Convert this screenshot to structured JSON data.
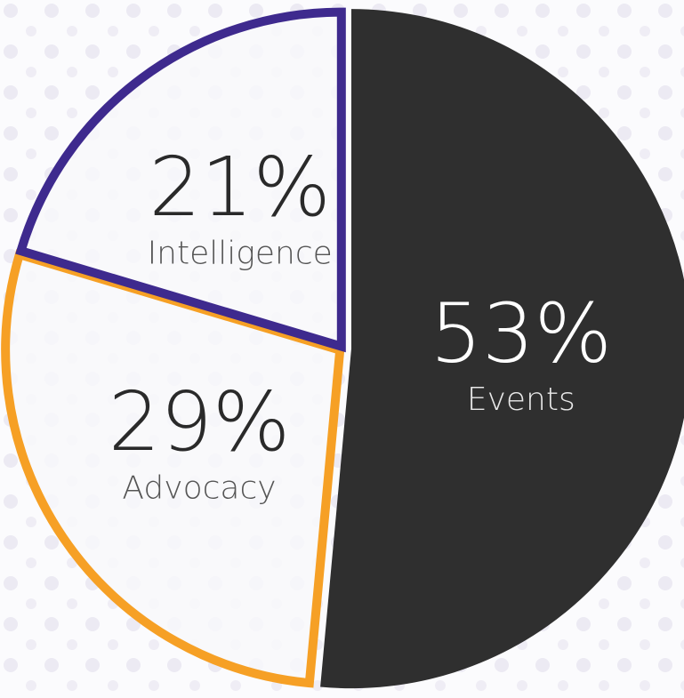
{
  "chart_data": {
    "type": "pie",
    "categories": [
      "Events",
      "Advocacy",
      "Intelligence"
    ],
    "values": [
      53,
      29,
      21
    ],
    "value_labels": [
      "53%",
      "29%",
      "21%"
    ],
    "colors": [
      "#2f2f2f",
      "#f6a025",
      "#3e2a8e"
    ]
  }
}
